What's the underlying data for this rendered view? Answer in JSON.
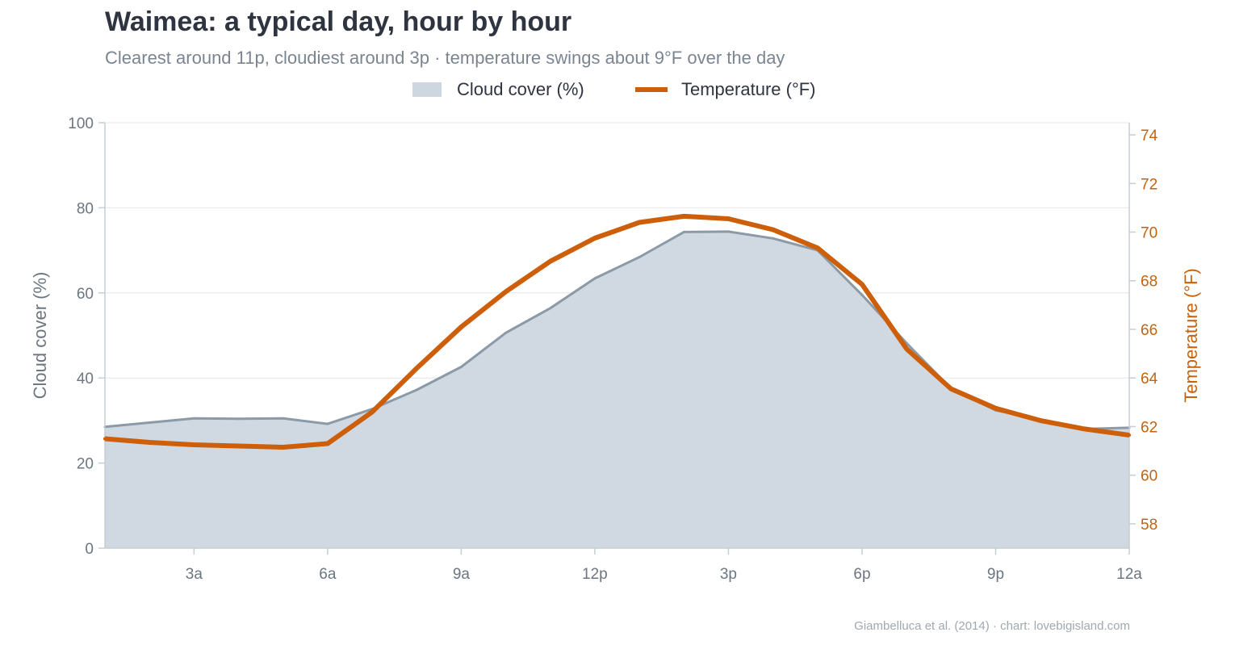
{
  "title": "Waimea: a typical day, hour by hour",
  "subtitle": "Clearest around 11p, cloudiest around 3p  ·  temperature swings about 9°F over the day",
  "source": "Giambelluca et al. (2014) · chart: lovebigisland.com",
  "legend": {
    "cloud": "Cloud cover (%)",
    "temp": "Temperature (°F)"
  },
  "colors": {
    "cloud_fill": "#d0d9e1",
    "cloud_line": "#8b9aa6",
    "temperature": "#cd5e0a",
    "grid": "#e2e6ea",
    "axis": "#c6cdd3"
  },
  "chart_data": {
    "type": "line",
    "x": [
      "1a",
      "2a",
      "3a",
      "4a",
      "5a",
      "6a",
      "7a",
      "8a",
      "9a",
      "10a",
      "11a",
      "12p",
      "1p",
      "2p",
      "3p",
      "4p",
      "5p",
      "6p",
      "7p",
      "8p",
      "9p",
      "10p",
      "11p",
      "12a"
    ],
    "x_tick_labels": [
      "3a",
      "6a",
      "9a",
      "12p",
      "3p",
      "6p",
      "9p",
      "12a"
    ],
    "series": [
      {
        "name": "Cloud cover (%)",
        "type": "area",
        "axis": "left",
        "values": [
          28.5,
          29.5,
          30.5,
          30.4,
          30.5,
          29.2,
          32.7,
          37.2,
          42.6,
          50.6,
          56.4,
          63.4,
          68.4,
          74.3,
          74.4,
          72.8,
          70.0,
          59.5,
          48.2,
          37.5,
          32.4,
          30.3,
          28.0,
          28.3
        ]
      },
      {
        "name": "Temperature (°F)",
        "type": "line",
        "axis": "right",
        "values": [
          61.5,
          61.35,
          61.25,
          61.2,
          61.15,
          61.3,
          62.6,
          64.4,
          66.1,
          67.55,
          68.8,
          69.75,
          70.4,
          70.65,
          70.55,
          70.1,
          69.35,
          67.85,
          65.2,
          63.55,
          62.75,
          62.25,
          61.9,
          61.65
        ]
      }
    ],
    "y_left": {
      "label": "Cloud cover  (%)",
      "ylim": [
        0,
        100
      ],
      "ticks": [
        0,
        20,
        40,
        60,
        80,
        100
      ]
    },
    "y_right": {
      "label": "Temperature  (°F)",
      "ylim": [
        57,
        74.5
      ],
      "ticks": [
        58,
        60,
        62,
        64,
        66,
        68,
        70,
        72,
        74
      ]
    },
    "grid": true,
    "legend_position": "top-center"
  }
}
